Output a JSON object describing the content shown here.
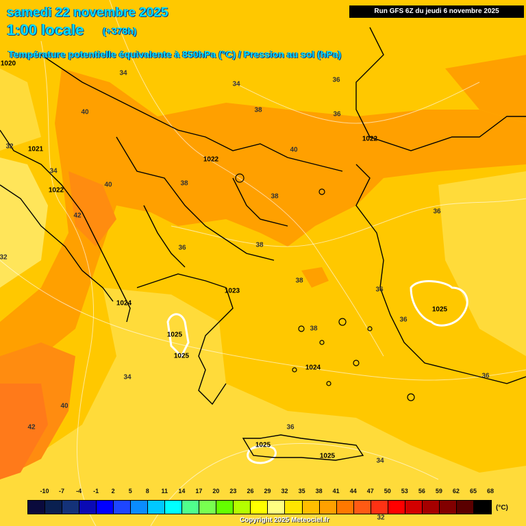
{
  "header": {
    "date": "samedi 22 novembre 2025",
    "local_time": "1:00 locale",
    "lead": "(+378h)",
    "product": "Température potentielle équivalente à 850hPa (°C) / Pression au sol (hPa)",
    "run": "Run GFS 6Z du jeudi 6 novembre 2025"
  },
  "map_labels": [
    {
      "text": "1020",
      "kind": "p",
      "lx": 12,
      "ly": 93
    },
    {
      "text": "34",
      "kind": "t",
      "lx": 180,
      "ly": 107
    },
    {
      "text": "34",
      "kind": "t",
      "lx": 345,
      "ly": 123
    },
    {
      "text": "36",
      "kind": "t",
      "lx": 491,
      "ly": 117
    },
    {
      "text": "40",
      "kind": "t",
      "lx": 124,
      "ly": 164
    },
    {
      "text": "38",
      "kind": "t",
      "lx": 377,
      "ly": 161
    },
    {
      "text": "36",
      "kind": "t",
      "lx": 492,
      "ly": 167
    },
    {
      "text": "32",
      "kind": "t",
      "lx": 14,
      "ly": 214
    },
    {
      "text": "1021",
      "kind": "p",
      "lx": 52,
      "ly": 218
    },
    {
      "text": "1022",
      "kind": "p",
      "lx": 540,
      "ly": 203
    },
    {
      "text": "40",
      "kind": "t",
      "lx": 429,
      "ly": 219
    },
    {
      "text": "1022",
      "kind": "p",
      "lx": 308,
      "ly": 233
    },
    {
      "text": "34",
      "kind": "t",
      "lx": 78,
      "ly": 250
    },
    {
      "text": "38",
      "kind": "t",
      "lx": 269,
      "ly": 268
    },
    {
      "text": "40",
      "kind": "t",
      "lx": 158,
      "ly": 270
    },
    {
      "text": "1022",
      "kind": "p",
      "lx": 82,
      "ly": 278
    },
    {
      "text": "38",
      "kind": "t",
      "lx": 401,
      "ly": 287
    },
    {
      "text": "42",
      "kind": "t",
      "lx": 113,
      "ly": 315
    },
    {
      "text": "36",
      "kind": "t",
      "lx": 638,
      "ly": 309
    },
    {
      "text": "36",
      "kind": "t",
      "lx": 266,
      "ly": 362
    },
    {
      "text": "38",
      "kind": "t",
      "lx": 379,
      "ly": 358
    },
    {
      "text": "32",
      "kind": "t",
      "lx": 5,
      "ly": 376
    },
    {
      "text": "38",
      "kind": "t",
      "lx": 437,
      "ly": 410
    },
    {
      "text": "1023",
      "kind": "p",
      "lx": 339,
      "ly": 425
    },
    {
      "text": "36",
      "kind": "t",
      "lx": 554,
      "ly": 423
    },
    {
      "text": "1024",
      "kind": "p",
      "lx": 181,
      "ly": 443
    },
    {
      "text": "1025",
      "kind": "p",
      "lx": 642,
      "ly": 452
    },
    {
      "text": "36",
      "kind": "t",
      "lx": 589,
      "ly": 467
    },
    {
      "text": "38",
      "kind": "t",
      "lx": 458,
      "ly": 480
    },
    {
      "text": "1025",
      "kind": "p",
      "lx": 255,
      "ly": 489
    },
    {
      "text": "1025",
      "kind": "p",
      "lx": 265,
      "ly": 520
    },
    {
      "text": "1024",
      "kind": "p",
      "lx": 457,
      "ly": 537
    },
    {
      "text": "34",
      "kind": "t",
      "lx": 186,
      "ly": 551
    },
    {
      "text": "36",
      "kind": "t",
      "lx": 709,
      "ly": 549
    },
    {
      "text": "40",
      "kind": "t",
      "lx": 94,
      "ly": 593
    },
    {
      "text": "42",
      "kind": "t",
      "lx": 46,
      "ly": 624
    },
    {
      "text": "36",
      "kind": "t",
      "lx": 424,
      "ly": 624
    },
    {
      "text": "1025",
      "kind": "p",
      "lx": 384,
      "ly": 650
    },
    {
      "text": "1025",
      "kind": "p",
      "lx": 478,
      "ly": 666
    },
    {
      "text": "34",
      "kind": "t",
      "lx": 555,
      "ly": 673
    },
    {
      "text": "32",
      "kind": "t",
      "lx": 556,
      "ly": 756
    }
  ],
  "colors": {
    "c30": "#ffe85a",
    "c32": "#ffd21a",
    "c36": "#ffc000",
    "c38": "#ff9e00",
    "c41": "#ff8a00",
    "c44": "#ff7410"
  },
  "legend": {
    "values": [
      "-10",
      "-7",
      "-4",
      "-1",
      "2",
      "5",
      "8",
      "11",
      "14",
      "17",
      "20",
      "23",
      "26",
      "29",
      "32",
      "35",
      "38",
      "41",
      "44",
      "47",
      "50",
      "53",
      "56",
      "59",
      "62",
      "65",
      "68"
    ],
    "colors": [
      "#0a0a3c",
      "#0a2050",
      "#143278",
      "#0a0ab4",
      "#0000ff",
      "#1e46ff",
      "#0a8cff",
      "#00c8ff",
      "#00ffff",
      "#50ff8c",
      "#78ff50",
      "#64ff00",
      "#b4ff00",
      "#ffff00",
      "#ffff82",
      "#ffe600",
      "#ffbe00",
      "#ffa000",
      "#ff7800",
      "#ff5a14",
      "#ff3214",
      "#ff0000",
      "#d20000",
      "#a50000",
      "#820000",
      "#5a0000",
      "#000000"
    ],
    "unit": "(°C)"
  },
  "copyright": "Copyright 2025 Meteociel.fr"
}
